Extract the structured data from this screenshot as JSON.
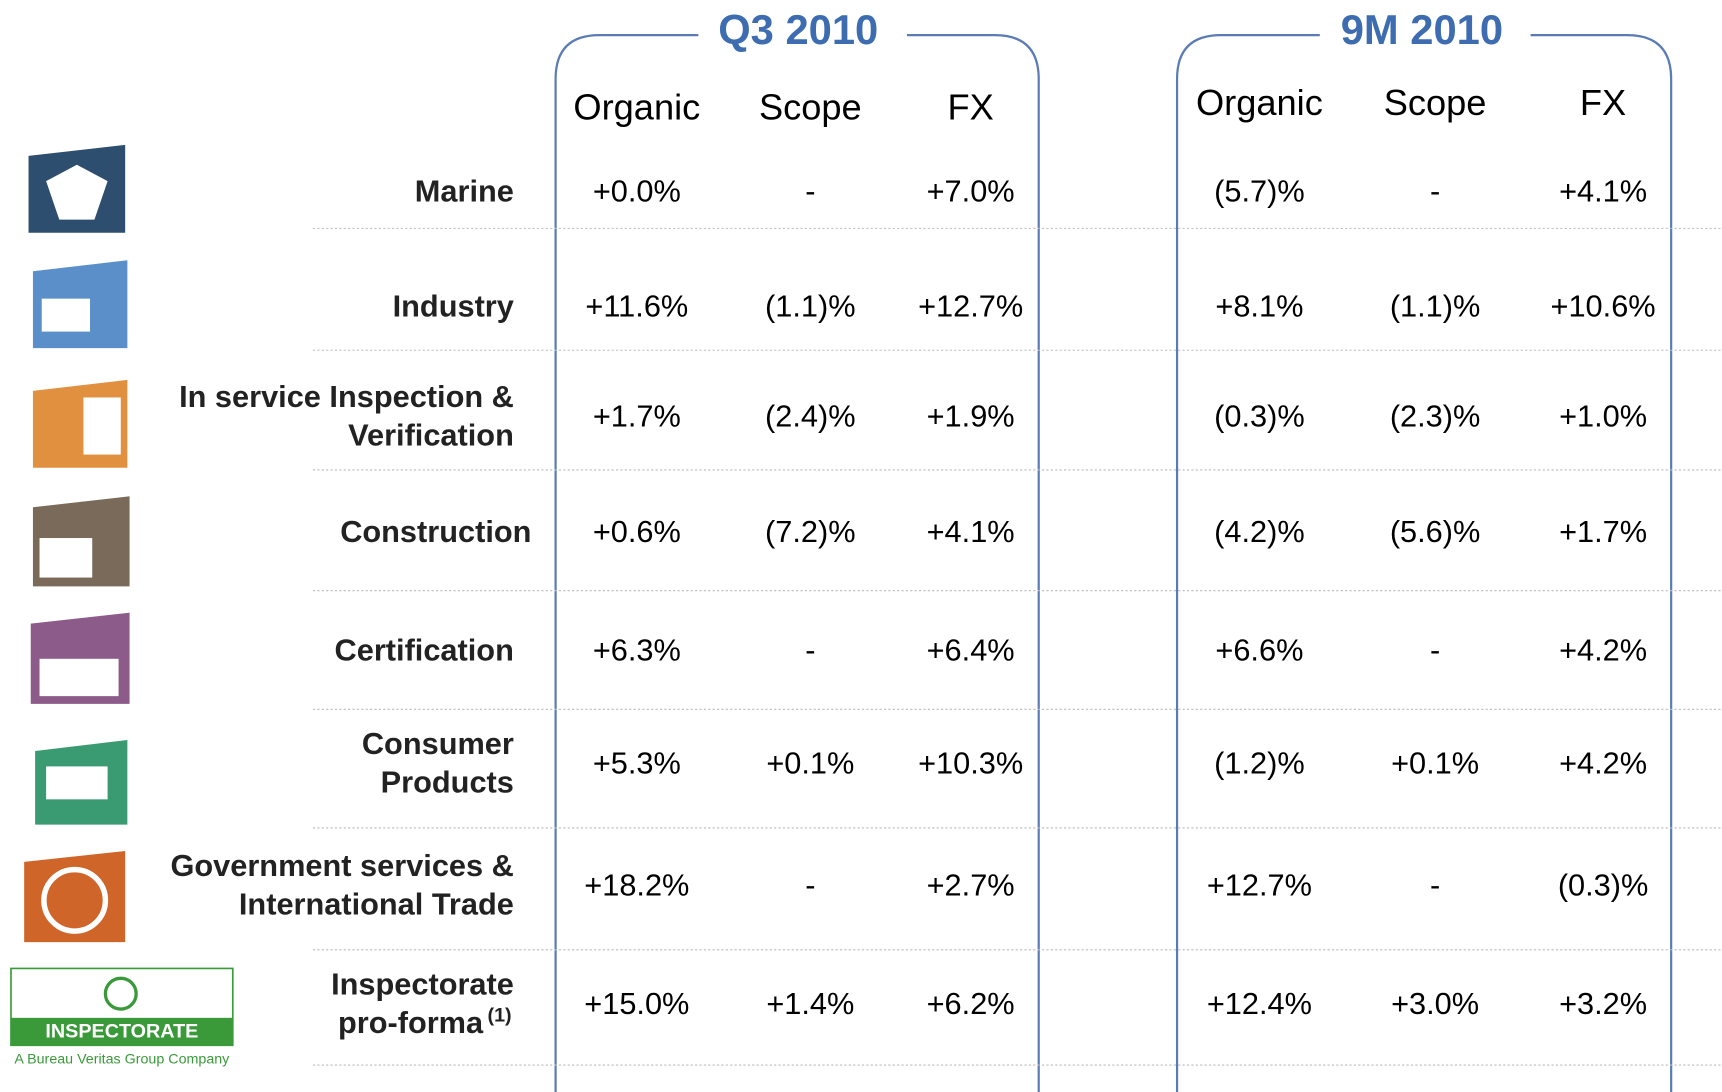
{
  "groups": [
    {
      "title": "Q3 2010",
      "columns": [
        "Organic",
        "Scope",
        "FX"
      ]
    },
    {
      "title": "9M 2010",
      "columns": [
        "Organic",
        "Scope",
        "FX"
      ]
    }
  ],
  "rows": [
    {
      "label": [
        "Marine"
      ],
      "values": [
        [
          "+0.0%",
          "-",
          "+7.0%"
        ],
        [
          "(5.7)%",
          "-",
          "+4.1%"
        ]
      ]
    },
    {
      "label": [
        "Industry"
      ],
      "values": [
        [
          "+11.6%",
          "(1.1)%",
          "+12.7%"
        ],
        [
          "+8.1%",
          "(1.1)%",
          "+10.6%"
        ]
      ]
    },
    {
      "label": [
        "In service Inspection &",
        "Verification"
      ],
      "values": [
        [
          "+1.7%",
          "(2.4)%",
          "+1.9%"
        ],
        [
          "(0.3)%",
          "(2.3)%",
          "+1.0%"
        ]
      ]
    },
    {
      "label": [
        "Construction"
      ],
      "values": [
        [
          "+0.6%",
          "(7.2)%",
          "+4.1%"
        ],
        [
          "(4.2)%",
          "(5.6)%",
          "+1.7%"
        ]
      ]
    },
    {
      "label": [
        "Certification"
      ],
      "values": [
        [
          "+6.3%",
          "-",
          "+6.4%"
        ],
        [
          "+6.6%",
          "-",
          "+4.2%"
        ]
      ]
    },
    {
      "label": [
        "Consumer",
        "Products"
      ],
      "values": [
        [
          "+5.3%",
          "+0.1%",
          "+10.3%"
        ],
        [
          "(1.2)%",
          "+0.1%",
          "+4.2%"
        ]
      ]
    },
    {
      "label": [
        "Government services &",
        "International Trade"
      ],
      "values": [
        [
          "+18.2%",
          "-",
          "+2.7%"
        ],
        [
          "+12.7%",
          "-",
          "(0.3)%"
        ]
      ]
    },
    {
      "label": [
        "Inspectorate",
        "pro-forma"
      ],
      "footnote": "(1)",
      "values": [
        [
          "+15.0%",
          "+1.4%",
          "+6.2%"
        ],
        [
          "+12.4%",
          "+3.0%",
          "+3.2%"
        ]
      ]
    }
  ],
  "logo": {
    "name": "INSPECTORATE",
    "tagline": "A Bureau Veritas Group Company"
  }
}
